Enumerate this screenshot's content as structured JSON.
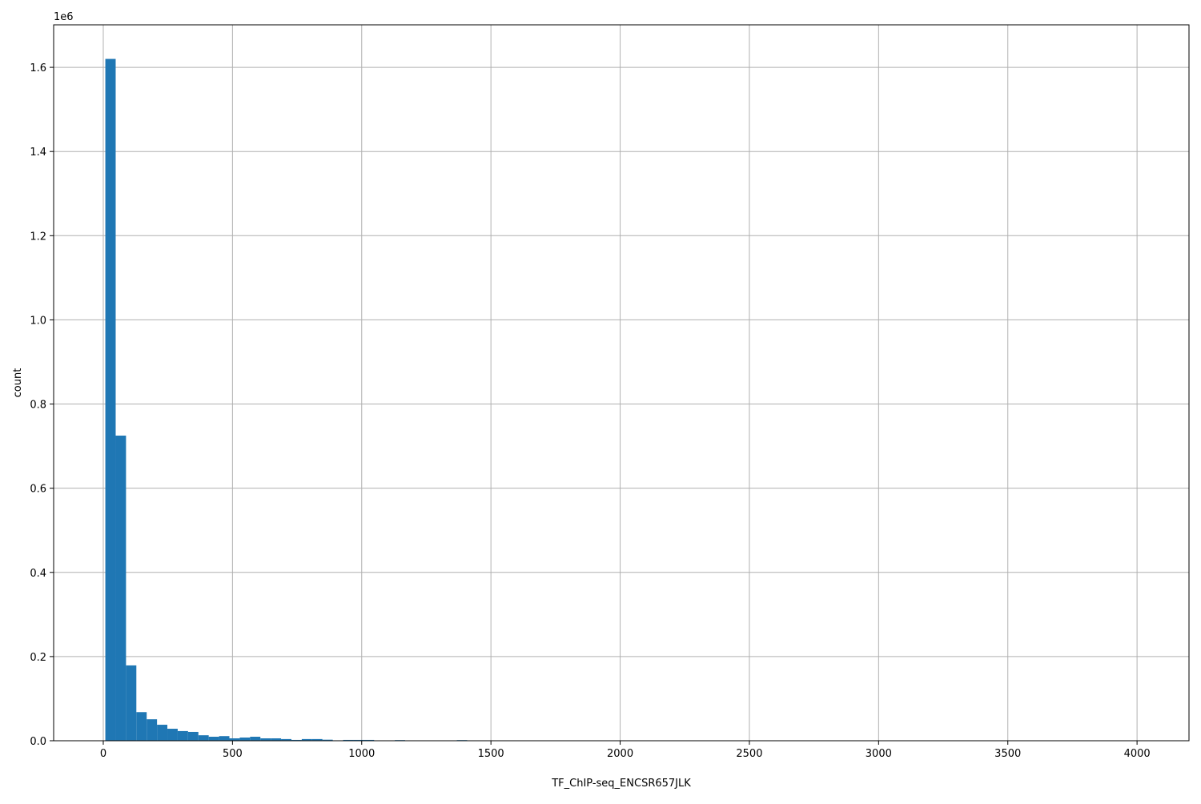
{
  "chart_data": {
    "type": "bar",
    "subtype": "histogram",
    "title": "",
    "xlabel": "TF_ChIP-seq_ENCSR657JLK",
    "ylabel": "count",
    "y_offset_label": "1e6",
    "xlim": [
      -192,
      4201
    ],
    "ylim": [
      0,
      1701000
    ],
    "grid": true,
    "color": "#1f77b4",
    "bin_start": 8,
    "bin_width": 40,
    "values": [
      1620000,
      725000,
      179000,
      68000,
      51000,
      38000,
      28500,
      23000,
      21000,
      13000,
      9500,
      11000,
      5700,
      7600,
      9500,
      5700,
      5700,
      4000,
      2000,
      4000,
      4000,
      2500,
      1000,
      2000,
      2000,
      2000,
      500,
      800,
      1500,
      300,
      300,
      300,
      300,
      300,
      1500,
      0,
      0,
      0,
      0,
      0,
      0,
      0,
      0,
      0,
      0,
      0,
      0,
      0,
      0,
      0,
      0,
      0,
      0,
      0,
      0,
      0,
      0,
      0,
      0,
      0,
      0,
      0,
      0,
      0,
      0,
      0,
      0,
      0,
      0,
      0,
      0,
      0,
      0,
      0,
      0,
      0,
      0,
      0,
      0,
      0,
      0,
      0,
      0,
      0,
      0,
      0,
      0,
      0,
      0,
      0,
      0,
      0,
      0,
      0,
      0,
      0,
      0,
      0,
      0,
      100
    ],
    "x_ticks": [
      0,
      500,
      1000,
      1500,
      2000,
      2500,
      3000,
      3500,
      4000
    ],
    "x_tick_labels": [
      "0",
      "500",
      "1000",
      "1500",
      "2000",
      "2500",
      "3000",
      "3500",
      "4000"
    ],
    "y_ticks": [
      0,
      200000,
      400000,
      600000,
      800000,
      1000000,
      1200000,
      1400000,
      1600000
    ],
    "y_tick_labels": [
      "0.0",
      "0.2",
      "0.4",
      "0.6",
      "0.8",
      "1.0",
      "1.2",
      "1.4",
      "1.6"
    ]
  }
}
